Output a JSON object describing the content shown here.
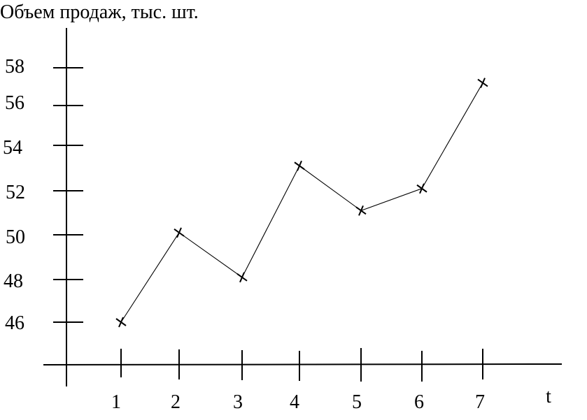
{
  "chart_data": {
    "type": "line",
    "title": "Объем продаж, тыс. шт.",
    "xlabel": "t",
    "ylabel": "",
    "x": [
      1,
      2,
      3,
      4,
      5,
      6,
      7
    ],
    "series": [
      {
        "values": [
          46,
          50.1,
          48.1,
          53.1,
          51.1,
          52.1,
          57.2
        ]
      }
    ],
    "x_ticks": [
      "1",
      "2",
      "3",
      "4",
      "5",
      "6",
      "7"
    ],
    "y_ticks": [
      "46",
      "48",
      "50",
      "52",
      "54",
      "56",
      "58"
    ],
    "marker": "x",
    "grid": false,
    "line_color": "#000000"
  }
}
